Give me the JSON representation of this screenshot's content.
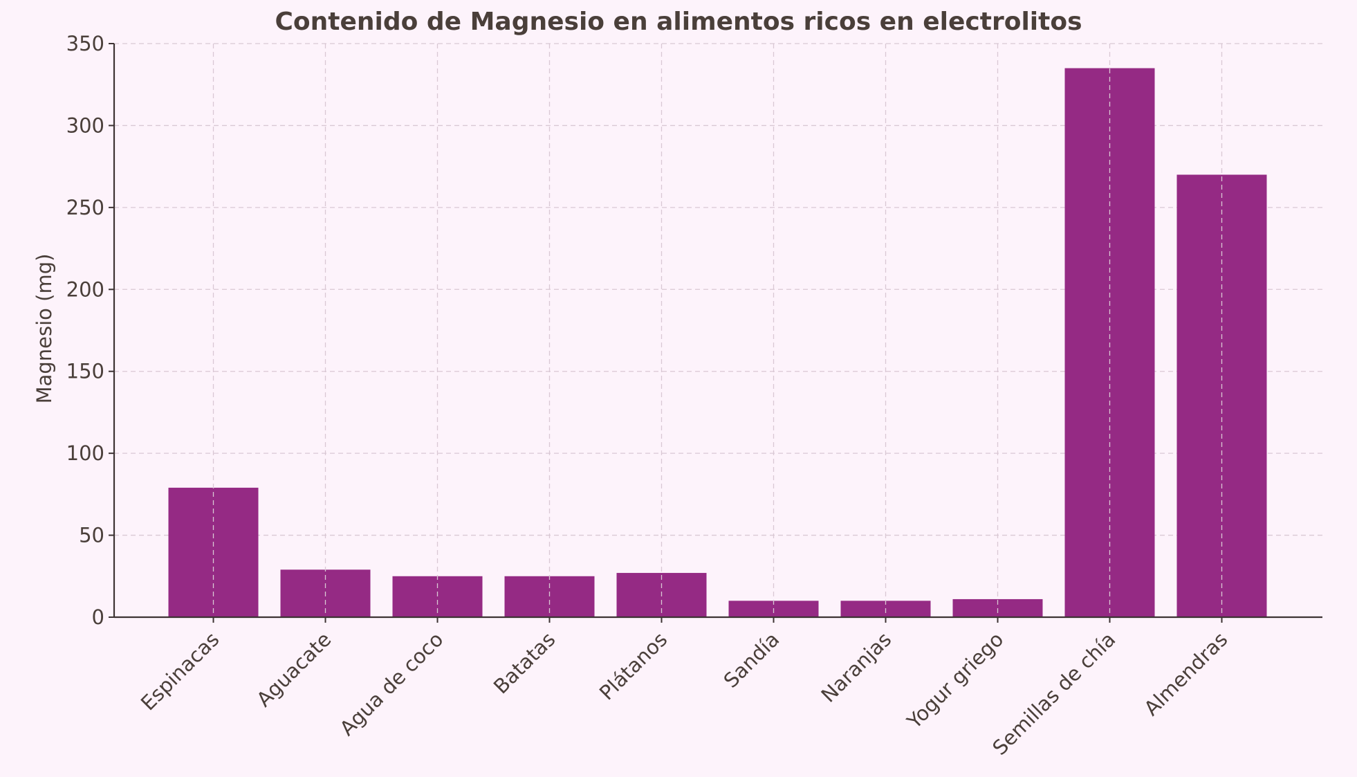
{
  "chart_data": {
    "type": "bar",
    "title": "Contenido de Magnesio en alimentos ricos en electrolitos",
    "xlabel": "",
    "ylabel": "Magnesio (mg)",
    "ylim": [
      0,
      350
    ],
    "yticks": [
      0,
      50,
      100,
      150,
      200,
      250,
      300,
      350
    ],
    "grid": true,
    "bar_color": "#952a84",
    "categories": [
      "Espinacas",
      "Aguacate",
      "Agua de coco",
      "Batatas",
      "Plátanos",
      "Sandía",
      "Naranjas",
      "Yogur griego",
      "Semillas de chía",
      "Almendras"
    ],
    "values": [
      79,
      29,
      25,
      25,
      27,
      10,
      10,
      11,
      335,
      270
    ]
  }
}
